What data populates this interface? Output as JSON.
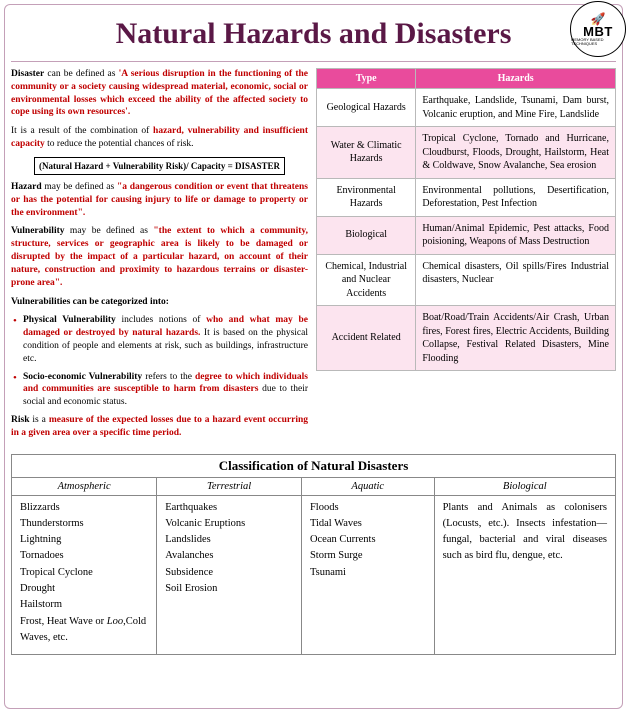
{
  "logo": {
    "glyph": "🚀",
    "text": "MBT",
    "sub": "MEMORY BASED TECHNIQUES"
  },
  "title": "Natural Hazards and Disasters",
  "intro": {
    "disaster_lead": "Disaster",
    "disaster_mid": " can be defined as ",
    "disaster_def": "'A serious disruption in the functioning of the community or a society causing widespread material, economic, social or environmental losses which exceed the ability of the affected society to cope using its own resources'.",
    "combo_a": "It is a result of the combination of ",
    "combo_b": "hazard, vulnerability and insufficient capacity",
    "combo_c": " to reduce the potential chances of risk.",
    "formula": "(Natural Hazard + Vulnerability Risk)/ Capacity = DISASTER",
    "hazard_lead": "Hazard",
    "hazard_mid": " may be defined as ",
    "hazard_def": "\"a dangerous condition or event that threatens or has the potential for causing injury to life or damage to property or the environment\".",
    "vuln_lead": "Vulnerability",
    "vuln_mid": " may be defined as ",
    "vuln_def": "\"the extent to which a community, structure, services or geographic area is likely to be damaged or disrupted by the impact of a particular hazard, on account of their nature, construction and proximity to hazardous terrains or disaster-prone area\".",
    "vuln_cat": "Vulnerabilities can be categorized into:",
    "phys_a": "Physical Vulnerability",
    "phys_b": " includes notions of ",
    "phys_c": "who and what may be damaged or destroyed by natural hazards.",
    "phys_d": " It is based on the physical condition of people and elements at risk, such as buildings, infrastructure etc.",
    "socio_a": "Socio-economic Vulnerability",
    "socio_b": " refers to the ",
    "socio_c": "degree to which individuals and communities are susceptible to harm from disasters",
    "socio_d": " due to their social and economic status.",
    "risk_lead": "Risk",
    "risk_mid": " is a ",
    "risk_def": "measure of the expected losses due to a hazard event occurring in a given area over a specific time period."
  },
  "hz": {
    "h1": "Type",
    "h2": "Hazards",
    "r": [
      {
        "t": "Geological Hazards",
        "d": "Earthquake, Landslide, Tsunami, Dam burst, Volcanic eruption, and Mine Fire, Landslide"
      },
      {
        "t": "Water & Climatic Hazards",
        "d": "Tropical Cyclone, Tornado and Hurricane, Cloudburst, Floods, Drought, Hailstorm, Heat & Coldwave, Snow Avalanche, Sea erosion"
      },
      {
        "t": "Environmental Hazards",
        "d": "Environmental pollutions, Desertification, Deforestation, Pest Infection"
      },
      {
        "t": "Biological",
        "d": "Human/Animal Epidemic, Pest attacks, Food poisioning, Weapons of Mass Destruction"
      },
      {
        "t": "Chemical, Industrial and Nuclear Accidents",
        "d": "Chemical disasters, Oil spills/Fires Industrial disasters, Nuclear"
      },
      {
        "t": "Accident Related",
        "d": "Boat/Road/Train Accidents/Air Crash, Urban fires, Forest fires, Electric Accidents, Building Collapse, Festival Related Disasters, Mine Flooding"
      }
    ]
  },
  "cls": {
    "title": "Classification of Natural Disasters",
    "h": [
      "Atmospheric",
      "Terrestrial",
      "Aquatic",
      "Biological"
    ],
    "atmo": [
      "Blizzards",
      "Thunderstorms",
      "Lightning",
      "Tornadoes",
      "Tropical Cyclone",
      "Drought",
      "Hailstorm",
      "Frost, Heat Wave or Loo,Cold Waves, etc."
    ],
    "terr": [
      "Earthquakes",
      "Volcanic Eruptions",
      "Landslides",
      "Avalanches",
      "Subsidence",
      "Soil Erosion"
    ],
    "aqua": [
      "Floods",
      "Tidal Waves",
      "Ocean Currents",
      "Storm Surge",
      "Tsunami"
    ],
    "bio": "Plants and Animals as colonisers (Locusts, etc.). Insects infestation— fungal, bacterial and viral diseases such as bird flu, dengue, etc."
  }
}
